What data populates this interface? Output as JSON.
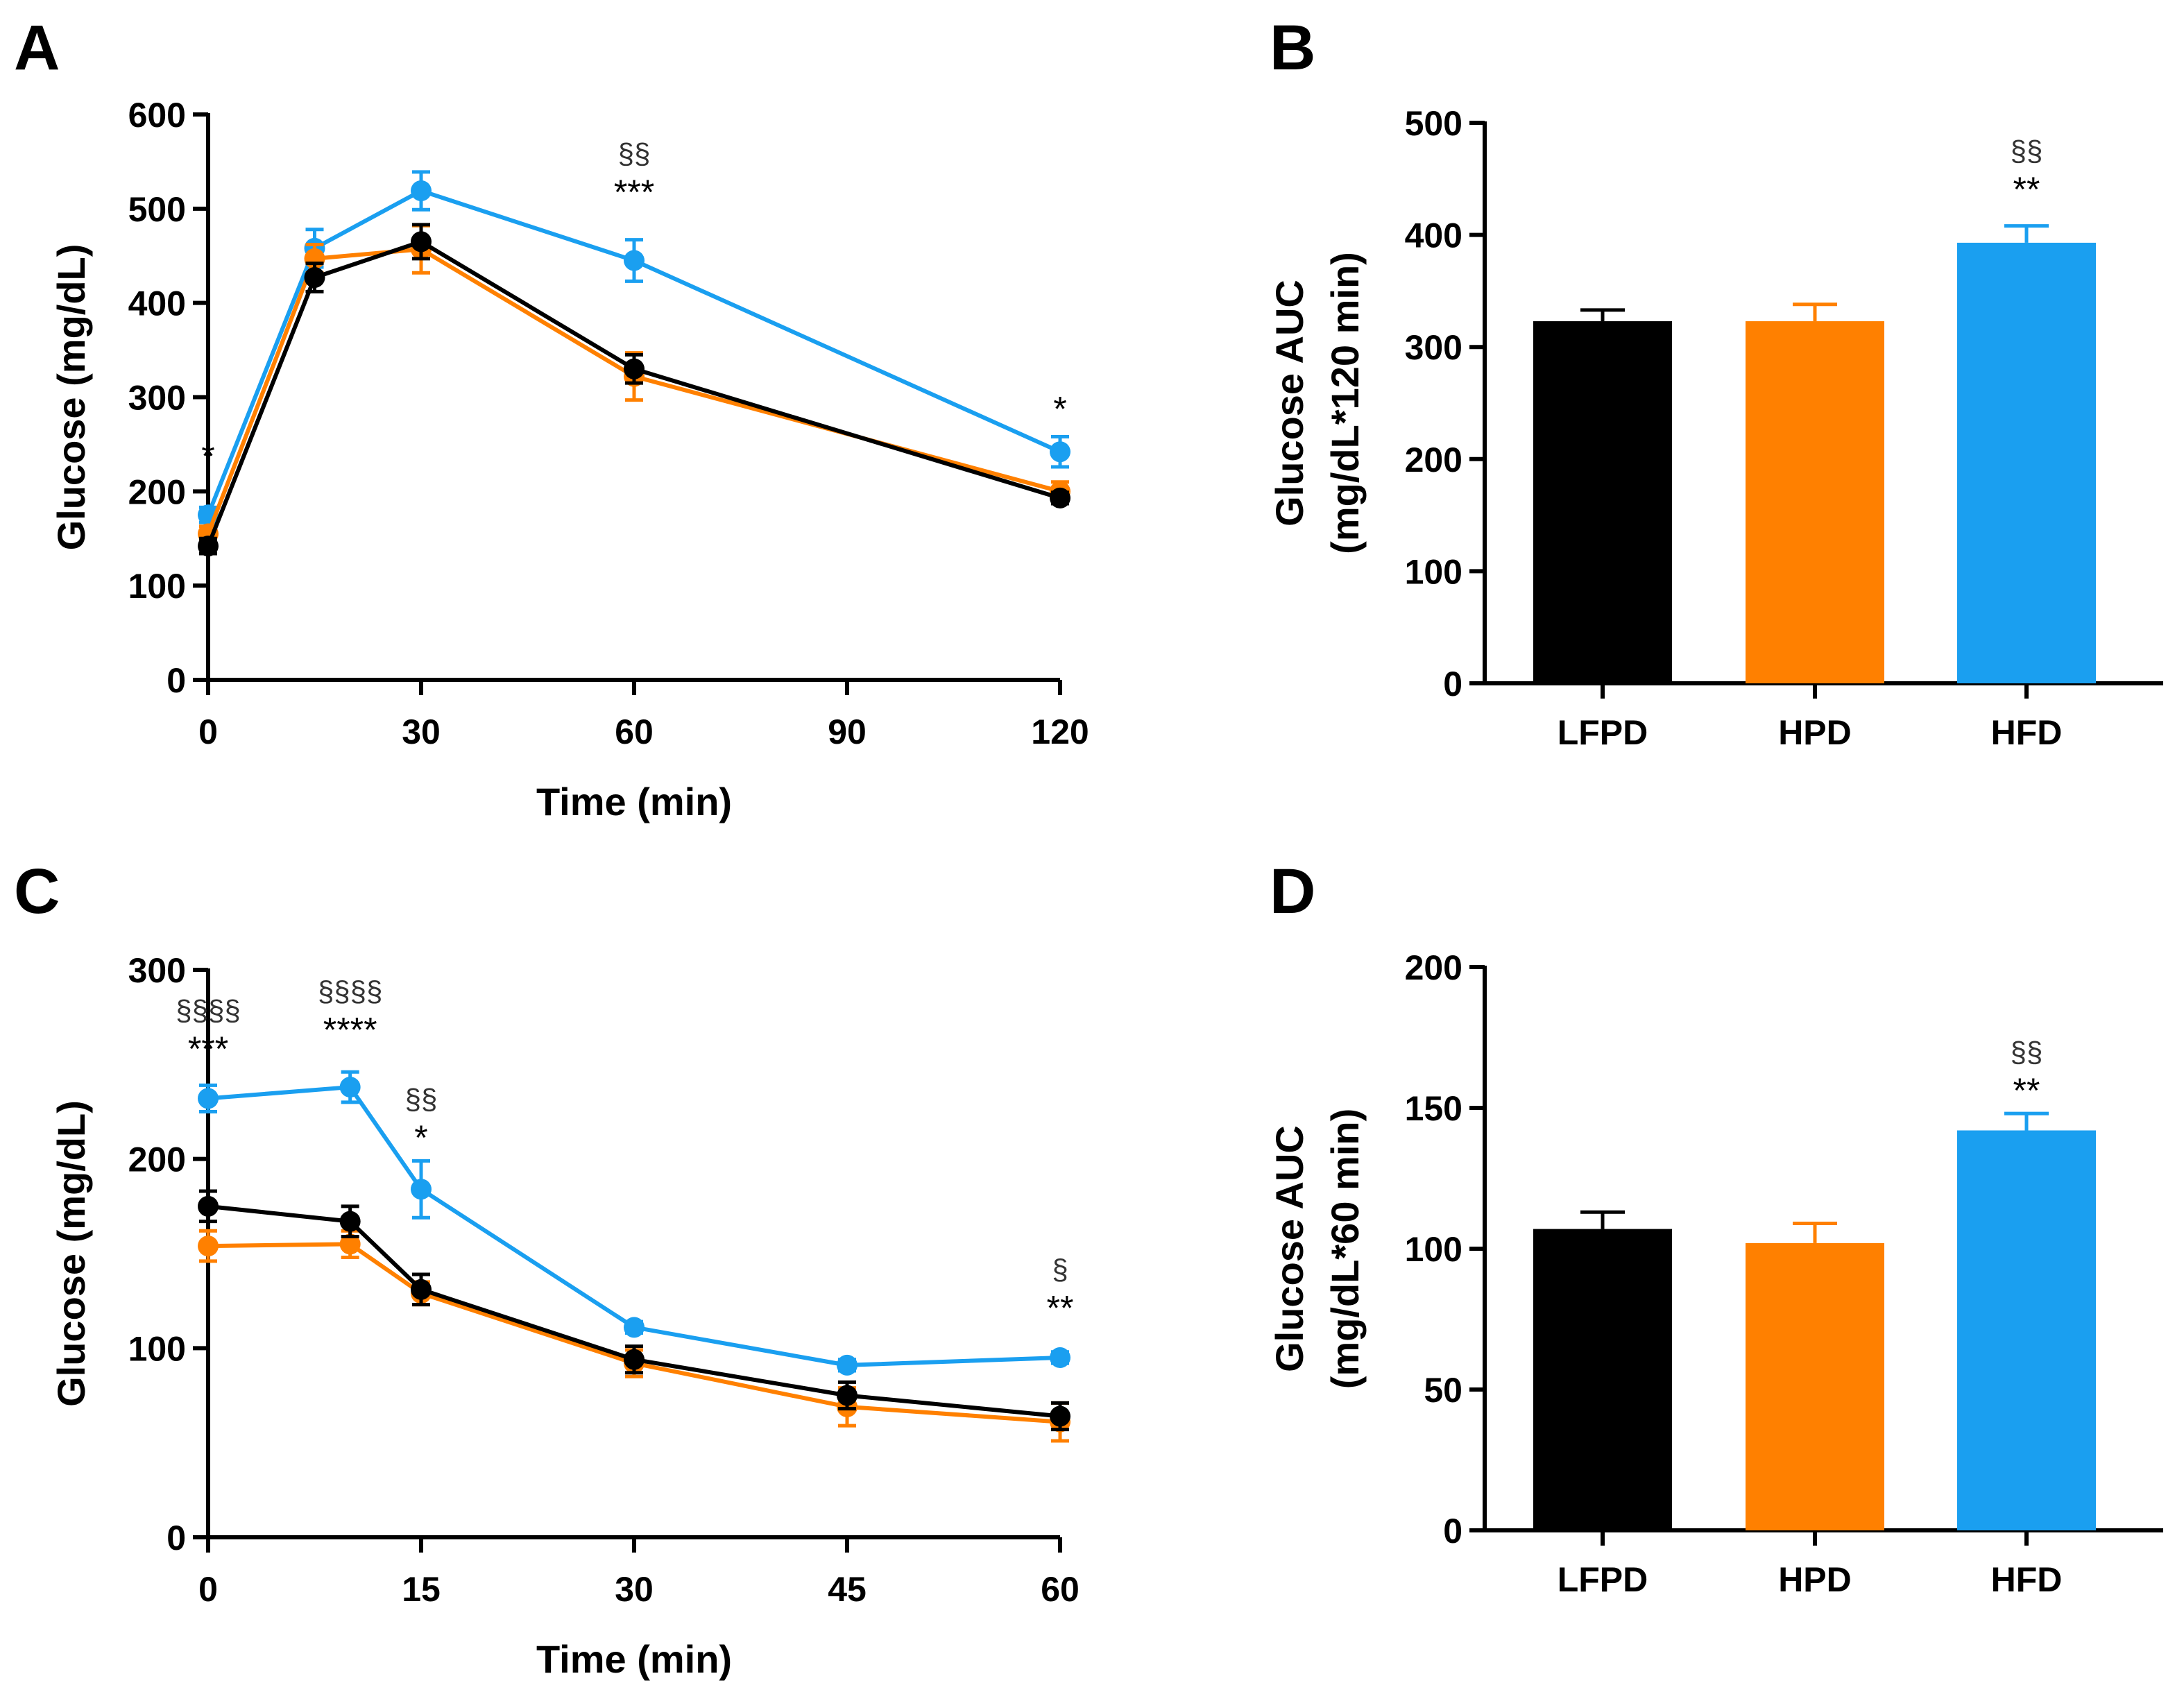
{
  "colors": {
    "LFPD": "#000000",
    "HPD": "#FF8000",
    "HFD": "#1A9FF0"
  },
  "chart_data": [
    {
      "panel": "A",
      "type": "line",
      "xlabel": "Time (min)",
      "ylabel": "Glucose (mg/dL)",
      "xlim": [
        0,
        120
      ],
      "ylim": [
        0,
        600
      ],
      "xticks": [
        0,
        30,
        60,
        90,
        120
      ],
      "yticks": [
        0,
        100,
        200,
        300,
        400,
        500,
        600
      ],
      "x": [
        0,
        15,
        30,
        60,
        120
      ],
      "series": [
        {
          "name": "HFD",
          "color": "#1A9FF0",
          "values": [
            175,
            458,
            519,
            445,
            242
          ],
          "errors": [
            8,
            20,
            20,
            22,
            16
          ]
        },
        {
          "name": "HPD",
          "color": "#FF8000",
          "values": [
            155,
            447,
            457,
            322,
            200
          ],
          "errors": [
            8,
            15,
            25,
            25,
            10
          ]
        },
        {
          "name": "LFPD",
          "color": "#000000",
          "values": [
            142,
            427,
            465,
            330,
            193
          ],
          "errors": [
            8,
            15,
            18,
            15,
            6
          ]
        }
      ],
      "annotations": [
        {
          "x": 0,
          "y": 225,
          "stars": "*",
          "section": ""
        },
        {
          "x": 60,
          "y": 505,
          "stars": "***",
          "section": "§§"
        },
        {
          "x": 120,
          "y": 275,
          "stars": "*",
          "section": ""
        }
      ]
    },
    {
      "panel": "B",
      "type": "bar",
      "xlabel": "",
      "ylabel": "Glucose AUC",
      "ylabel2": "(mg/dL*120 min)",
      "ylim": [
        0,
        500
      ],
      "yticks": [
        0,
        100,
        200,
        300,
        400,
        500
      ],
      "categories": [
        "LFPD",
        "HPD",
        "HFD"
      ],
      "values": [
        323,
        323,
        393
      ],
      "errors": [
        10,
        15,
        15
      ],
      "colors": [
        "#000000",
        "#FF8000",
        "#1A9FF0"
      ],
      "annotations": [
        {
          "category": "HFD",
          "y": 430,
          "stars": "**",
          "section": "§§"
        }
      ]
    },
    {
      "panel": "C",
      "type": "line",
      "xlabel": "Time (min)",
      "ylabel": "Glucose (mg/dL)",
      "xlim": [
        0,
        60
      ],
      "ylim": [
        0,
        300
      ],
      "xticks": [
        0,
        15,
        30,
        45,
        60
      ],
      "yticks": [
        0,
        100,
        200,
        300
      ],
      "x": [
        0,
        10,
        15,
        30,
        45,
        60
      ],
      "series": [
        {
          "name": "HFD",
          "color": "#1A9FF0",
          "values": [
            232,
            238,
            184,
            111,
            91,
            95
          ],
          "errors": [
            7,
            8,
            15,
            3,
            3,
            3
          ]
        },
        {
          "name": "HPD",
          "color": "#FF8000",
          "values": [
            154,
            155,
            129,
            92,
            69,
            61
          ],
          "errors": [
            8,
            7,
            6,
            7,
            10,
            10
          ]
        },
        {
          "name": "LFPD",
          "color": "#000000",
          "values": [
            175,
            167,
            131,
            94,
            75,
            64
          ],
          "errors": [
            8,
            8,
            8,
            7,
            7,
            7
          ]
        }
      ],
      "annotations": [
        {
          "x": 0,
          "y": 252,
          "stars": "***",
          "section": "§§§§"
        },
        {
          "x": 10,
          "y": 262,
          "stars": "****",
          "section": "§§§§"
        },
        {
          "x": 15,
          "y": 205,
          "stars": "*",
          "section": "§§"
        },
        {
          "x": 60,
          "y": 115,
          "stars": "**",
          "section": "§"
        }
      ]
    },
    {
      "panel": "D",
      "type": "bar",
      "xlabel": "",
      "ylabel": "Glucose AUC",
      "ylabel2": "(mg/dL*60 min)",
      "ylim": [
        0,
        200
      ],
      "yticks": [
        0,
        50,
        100,
        150,
        200
      ],
      "categories": [
        "LFPD",
        "HPD",
        "HFD"
      ],
      "values": [
        107,
        102,
        142
      ],
      "errors": [
        6,
        7,
        6
      ],
      "colors": [
        "#000000",
        "#FF8000",
        "#1A9FF0"
      ],
      "annotations": [
        {
          "category": "HFD",
          "y": 152,
          "stars": "**",
          "section": "§§"
        }
      ]
    }
  ]
}
